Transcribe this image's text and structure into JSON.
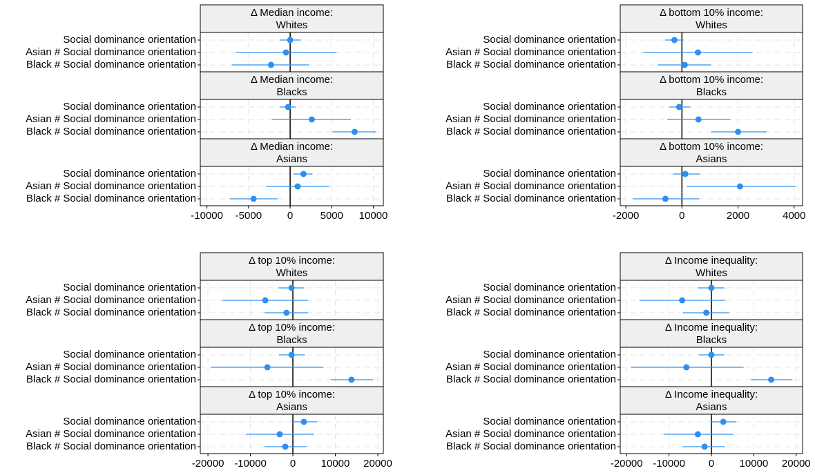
{
  "chart_data": [
    {
      "type": "coefplot",
      "color": "#2f8ff0",
      "grid": true,
      "xline": 0,
      "xlim": [
        -10800,
        11200
      ],
      "xticks": [
        -10000,
        -5000,
        0,
        5000,
        10000
      ],
      "panels": [
        {
          "title": [
            "Δ Median income:",
            "Whites"
          ],
          "categories": [
            "Social dominance orientation",
            "Asian # Social dominance orientation",
            "Black # Social dominance orientation"
          ],
          "values": [
            0,
            -500,
            -2300
          ],
          "lower": [
            -1250,
            -6500,
            -7000
          ],
          "upper": [
            1250,
            5600,
            2250
          ]
        },
        {
          "title": [
            "Δ Median income:",
            "Blacks"
          ],
          "categories": [
            "Social dominance orientation",
            "Asian # Social dominance orientation",
            "Black # Social dominance orientation"
          ],
          "values": [
            -250,
            2600,
            7750
          ],
          "lower": [
            -1250,
            -2200,
            5100
          ],
          "upper": [
            670,
            7300,
            10300
          ]
        },
        {
          "title": [
            "Δ Median income:",
            "Asians"
          ],
          "categories": [
            "Social dominance orientation",
            "Asian # Social dominance orientation",
            "Black # Social dominance orientation"
          ],
          "values": [
            1600,
            900,
            -4400
          ],
          "lower": [
            400,
            -2900,
            -7250
          ],
          "upper": [
            2700,
            4700,
            -1500
          ]
        }
      ]
    },
    {
      "type": "coefplot",
      "color": "#2f8ff0",
      "grid": true,
      "xline": 0,
      "xlim": [
        -2200,
        4300
      ],
      "xticks": [
        -2000,
        0,
        2000,
        4000
      ],
      "panels": [
        {
          "title": [
            "Δ bottom 10% income:",
            "Whites"
          ],
          "categories": [
            "Social dominance orientation",
            "Asian # Social dominance orientation",
            "Black # Social dominance orientation"
          ],
          "values": [
            -270,
            570,
            100
          ],
          "lower": [
            -600,
            -1380,
            -860
          ],
          "upper": [
            50,
            2520,
            1040
          ]
        },
        {
          "title": [
            "Δ bottom 10% income:",
            "Blacks"
          ],
          "categories": [
            "Social dominance orientation",
            "Asian # Social dominance orientation",
            "Black # Social dominance orientation"
          ],
          "values": [
            -100,
            590,
            2000
          ],
          "lower": [
            -470,
            -520,
            1040
          ],
          "upper": [
            300,
            1730,
            3020
          ]
        },
        {
          "title": [
            "Δ bottom 10% income:",
            "Asians"
          ],
          "categories": [
            "Social dominance orientation",
            "Asian # Social dominance orientation",
            "Black # Social dominance orientation"
          ],
          "values": [
            120,
            2070,
            -590
          ],
          "lower": [
            -320,
            170,
            -1750
          ],
          "upper": [
            640,
            4050,
            620
          ]
        }
      ]
    },
    {
      "type": "coefplot",
      "color": "#2f8ff0",
      "grid": true,
      "xline": 0,
      "xlim": [
        -21800,
        21300
      ],
      "xticks": [
        -20000,
        -10000,
        0,
        10000,
        20000
      ],
      "panels": [
        {
          "title": [
            "Δ top 10% income:",
            "Whites"
          ],
          "categories": [
            "Social dominance orientation",
            "Asian # Social dominance orientation",
            "Black # Social dominance orientation"
          ],
          "values": [
            -300,
            -6500,
            -1500
          ],
          "lower": [
            -3400,
            -16600,
            -6700
          ],
          "upper": [
            2600,
            3600,
            3600
          ]
        },
        {
          "title": [
            "Δ top 10% income:",
            "Blacks"
          ],
          "categories": [
            "Social dominance orientation",
            "Asian # Social dominance orientation",
            "Black # Social dominance orientation"
          ],
          "values": [
            -300,
            -6000,
            13800
          ],
          "lower": [
            -3300,
            -19200,
            8900
          ],
          "upper": [
            2800,
            7200,
            18900
          ]
        },
        {
          "title": [
            "Δ top 10% income:",
            "Asians"
          ],
          "categories": [
            "Social dominance orientation",
            "Asian # Social dominance orientation",
            "Black # Social dominance orientation"
          ],
          "values": [
            2600,
            -3100,
            -1800
          ],
          "lower": [
            -300,
            -11100,
            -6700
          ],
          "upper": [
            5700,
            5000,
            3300
          ]
        }
      ]
    },
    {
      "type": "coefplot",
      "color": "#2f8ff0",
      "grid": true,
      "xline": 0,
      "xlim": [
        -21500,
        21500
      ],
      "xticks": [
        -20000,
        -10000,
        0,
        10000,
        20000
      ],
      "panels": [
        {
          "title": [
            "Δ Income inequality:",
            "Whites"
          ],
          "categories": [
            "Social dominance orientation",
            "Asian # Social dominance orientation",
            "Black # Social dominance orientation"
          ],
          "values": [
            0,
            -6900,
            -1200
          ],
          "lower": [
            -3200,
            -17000,
            -6700
          ],
          "upper": [
            3100,
            3300,
            4200
          ]
        },
        {
          "title": [
            "Δ Income inequality:",
            "Blacks"
          ],
          "categories": [
            "Social dominance orientation",
            "Asian # Social dominance orientation",
            "Black # Social dominance orientation"
          ],
          "values": [
            0,
            -5900,
            14100
          ],
          "lower": [
            -3000,
            -19000,
            9300
          ],
          "upper": [
            3100,
            7600,
            19100
          ]
        },
        {
          "title": [
            "Δ Income inequality:",
            "Asians"
          ],
          "categories": [
            "Social dominance orientation",
            "Asian # Social dominance orientation",
            "Black # Social dominance orientation"
          ],
          "values": [
            2800,
            -3200,
            -1600
          ],
          "lower": [
            -200,
            -11300,
            -6800
          ],
          "upper": [
            5900,
            5200,
            3200
          ]
        }
      ]
    }
  ]
}
